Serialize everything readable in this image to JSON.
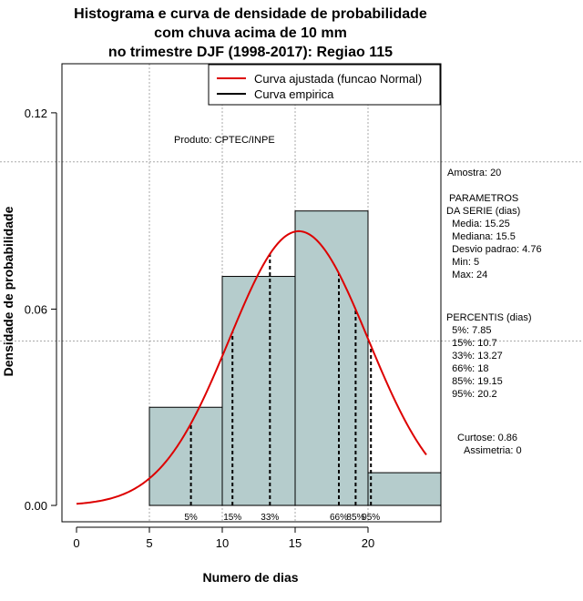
{
  "chart_data": {
    "type": "histogram",
    "title": [
      "Histograma e curva de densidade de probabilidade",
      "com chuva acima de 10 mm",
      "no trimestre DJF (1998-2017): Regiao 115"
    ],
    "xlabel": "Numero de dias",
    "ylabel": "Densidade de probabilidade",
    "xlim": [
      -1,
      25
    ],
    "ylim": [
      -0.005,
      0.135
    ],
    "xticks": [
      0,
      5,
      10,
      15,
      20
    ],
    "yticks": [
      0.0,
      0.06,
      0.12
    ],
    "ytick_labels": [
      "0.00",
      "0.06",
      "0.12"
    ],
    "bins": [
      {
        "x0": 5,
        "x1": 10,
        "density": 0.03
      },
      {
        "x0": 10,
        "x1": 15,
        "density": 0.07
      },
      {
        "x0": 15,
        "x1": 20,
        "density": 0.09
      },
      {
        "x0": 20,
        "x1": 25,
        "density": 0.01
      }
    ],
    "bar_color": "#b5cccc",
    "curve": {
      "name": "Curva ajustada (funcao Normal)",
      "mean": 15.25,
      "sd": 4.76,
      "xmin": 0,
      "xmax": 24,
      "color": "#dd0000"
    },
    "empirical_legend": "Curva empirica",
    "percentiles": [
      {
        "label": "5%",
        "value": 7.85
      },
      {
        "label": "15%",
        "value": 10.7
      },
      {
        "label": "33%",
        "value": 13.27
      },
      {
        "label": "66%",
        "value": 18
      },
      {
        "label": "85%",
        "value": 19.15
      },
      {
        "label": "95%",
        "value": 20.2
      }
    ],
    "gridlines_x": [
      5,
      10,
      15,
      20
    ],
    "gridlines_y": [
      0.06
    ],
    "annotation": "Produto: CPTEC/INPE",
    "legend_position": "top-right"
  },
  "stats_panel": [
    "Amostra: 20",
    " PARAMETROS",
    "DA SERIE (dias)",
    "  Media: 15.25",
    "  Mediana: 15.5",
    "  Desvio padrao: 4.76",
    "  Min: 5",
    "  Max: 24",
    "PERCENTIS (dias)",
    "  5%: 7.85",
    "  15%: 10.7",
    "  33%: 13.27",
    "  66%: 18",
    "  85%: 19.15",
    "  95%: 20.2",
    "Curtose: 0.86",
    "Assimetria: 0"
  ]
}
